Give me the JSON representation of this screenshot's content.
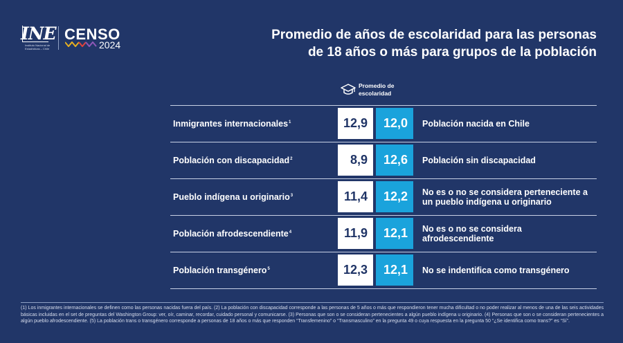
{
  "header": {
    "ine_mark": "INE",
    "ine_subtitle": "Instituto Nacional de Estadísticas – Chile",
    "censo_word": "CENSO",
    "censo_year": "2024",
    "title_line1": "Promedio de años de escolaridad para las personas",
    "title_line2": "de 18 años o más para grupos de la población"
  },
  "column_header": {
    "label": "Promedio de\nescolaridad",
    "icon": "graduation-cap-icon"
  },
  "colors": {
    "background": "#213668",
    "left_value_bg": "#ffffff",
    "right_value_bg": "#1aa3dc",
    "text": "#ffffff"
  },
  "chart_data": {
    "type": "table",
    "rows": [
      {
        "group": "Inmigrantes internacionales",
        "note": "1",
        "group_value": "12,9",
        "comparison_value": "12,0",
        "comparison": "Población nacida en Chile"
      },
      {
        "group": "Población con discapacidad",
        "note": "2",
        "group_value": "8,9",
        "comparison_value": "12,6",
        "comparison": "Población sin discapacidad"
      },
      {
        "group": "Pueblo indígena u originario",
        "note": "3",
        "group_value": "11,4",
        "comparison_value": "12,2",
        "comparison": "No es o no se considera perteneciente a un pueblo indígena u originario"
      },
      {
        "group": "Población afrodescendiente",
        "note": "4",
        "group_value": "11,9",
        "comparison_value": "12,1",
        "comparison": "No es o no se considera afrodescendiente"
      },
      {
        "group": "Población transgénero",
        "note": "5",
        "group_value": "12,3",
        "comparison_value": "12,1",
        "comparison": "No se indentifica como transgénero"
      }
    ]
  },
  "footnote": "(1) Los inmigrantes internacionales se definen como las personas nacidas fuera del país. (2) La población con discapacidad corresponde a las personas de 5 años o más que respondieron tener mucha dificultad o no poder realizar al menos de una de las seis actividades básicas incluidas en el set de preguntas del Washington Group: ver, oír, caminar, recordar, cuidado personal y comunicarse. (3) Personas que son o se consideran pertenecientes a algún pueblo indígena u originario. (4) Personas que son o se consideran pertenecientes a algún pueblo afrodescendiente. (5) La población trans o transgénero corresponde a personas de 18 años o más que responden “Transfemenino” o “Transmasculino” en la pregunta 49 o cuya respuesta en la pregunta 50 “¿Se identifica como trans?” es “Sí”."
}
